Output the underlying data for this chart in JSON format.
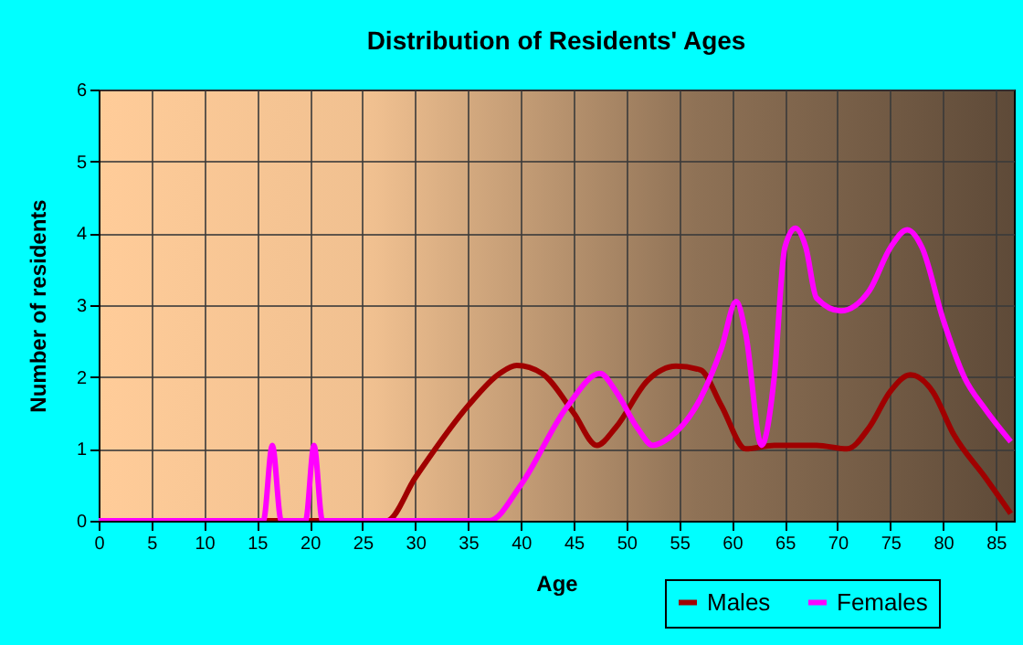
{
  "chart_data": {
    "type": "line",
    "title": "Distribution of Residents' Ages",
    "xlabel": "Age",
    "ylabel": "Number of residents",
    "xlim": [
      0,
      86.7
    ],
    "xticks": [
      0,
      5,
      10,
      15,
      20,
      25,
      30,
      35,
      40,
      45,
      50,
      55,
      60,
      65,
      70,
      75,
      80,
      85
    ],
    "ylim": [
      0,
      6
    ],
    "yticks": [
      0,
      1,
      2,
      3,
      4,
      5,
      6
    ],
    "grid": true,
    "legend": "bottom right",
    "series": [
      {
        "name": "Males",
        "color": "#a00000",
        "x": [
          0,
          27.3,
          30,
          35,
          38,
          39.6,
          42,
          45,
          47.2,
          49,
          52,
          54.7,
          57,
          59,
          61.3,
          64,
          68,
          70.9,
          73,
          75,
          76.9,
          79,
          81,
          84,
          86.4
        ],
        "values": [
          0,
          0,
          0.6,
          1.6,
          2.05,
          2.16,
          2.05,
          1.5,
          1.05,
          1.3,
          1.95,
          2.15,
          2.1,
          1.6,
          1.0,
          1.05,
          1.05,
          1.0,
          1.3,
          1.8,
          2.03,
          1.8,
          1.2,
          0.6,
          0.1
        ]
      },
      {
        "name": "Females",
        "color": "#ff00ff",
        "x": [
          0,
          15.6,
          16.45,
          17.3,
          19.6,
          20.4,
          21.2,
          37,
          40,
          44.3,
          47.5,
          49,
          51,
          52.5,
          54,
          57,
          59,
          60.4,
          61.3,
          62.8,
          64,
          65,
          66,
          67,
          68,
          70.3,
          73,
          75,
          76.6,
          78,
          80,
          82,
          84,
          86.4
        ],
        "values": [
          0,
          0,
          1.05,
          0,
          0,
          1.05,
          0,
          0,
          0.5,
          1.57,
          2.05,
          1.8,
          1.3,
          1.05,
          1.15,
          1.7,
          2.4,
          3.05,
          2.6,
          1.05,
          2.0,
          3.8,
          4.07,
          3.8,
          3.1,
          2.92,
          3.2,
          3.8,
          4.05,
          3.8,
          2.8,
          2.0,
          1.55,
          1.1
        ]
      }
    ]
  }
}
